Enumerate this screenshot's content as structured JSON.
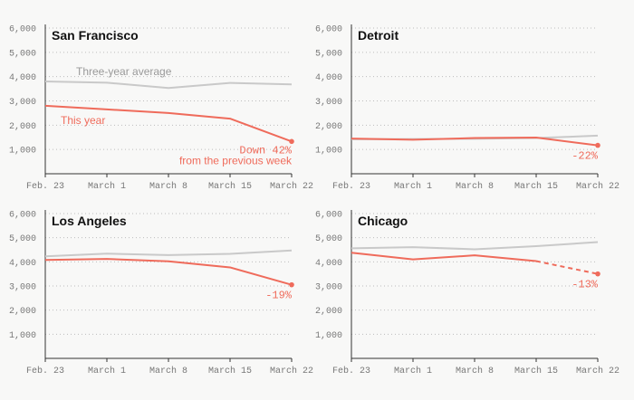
{
  "colors": {
    "this_year": "#ef6b5b",
    "average": "#c9c9c9",
    "axis": "#333333",
    "grid": "#bdbdbd",
    "tick_text": "#777777",
    "avg_label": "#999999"
  },
  "chart_data": [
    {
      "type": "line",
      "title": "San Francisco",
      "categories": [
        "Feb. 23",
        "March 1",
        "March 8",
        "March 15",
        "March 22"
      ],
      "ylim": [
        0,
        6000
      ],
      "yticks": [
        "1,000",
        "2,000",
        "3,000",
        "4,000",
        "5,000",
        "6,000"
      ],
      "grid": true,
      "series": [
        {
          "name": "Three-year average",
          "role": "average",
          "values": [
            3800,
            3750,
            3530,
            3740,
            3680
          ]
        },
        {
          "name": "This year",
          "role": "this_year",
          "values": [
            2800,
            2650,
            2500,
            2270,
            1330
          ]
        }
      ],
      "annotations": {
        "change_line1": "Down 42%",
        "change_line2": "from the previous week",
        "avg_label": "Three-year average",
        "this_year_label": "This year"
      }
    },
    {
      "type": "line",
      "title": "Detroit",
      "categories": [
        "Feb. 23",
        "March 1",
        "March 8",
        "March 15",
        "March 22"
      ],
      "ylim": [
        0,
        6000
      ],
      "yticks": [
        "1,000",
        "2,000",
        "3,000",
        "4,000",
        "5,000",
        "6,000"
      ],
      "grid": true,
      "series": [
        {
          "role": "average",
          "values": [
            1420,
            1430,
            1440,
            1470,
            1570
          ]
        },
        {
          "role": "this_year",
          "values": [
            1450,
            1400,
            1470,
            1490,
            1170
          ]
        }
      ],
      "annotations": {
        "change_line1": "-22%"
      }
    },
    {
      "type": "line",
      "title": "Los Angeles",
      "categories": [
        "Feb. 23",
        "March 1",
        "March 8",
        "March 15",
        "March 22"
      ],
      "ylim": [
        0,
        6000
      ],
      "yticks": [
        "1,000",
        "2,000",
        "3,000",
        "4,000",
        "5,000",
        "6,000"
      ],
      "grid": true,
      "series": [
        {
          "role": "average",
          "values": [
            4230,
            4340,
            4280,
            4330,
            4470
          ]
        },
        {
          "role": "this_year",
          "values": [
            4080,
            4120,
            4020,
            3770,
            3050
          ]
        }
      ],
      "annotations": {
        "change_line1": "-19%"
      }
    },
    {
      "type": "line",
      "title": "Chicago",
      "categories": [
        "Feb. 23",
        "March 1",
        "March 8",
        "March 15",
        "March 22"
      ],
      "ylim": [
        0,
        6000
      ],
      "yticks": [
        "1,000",
        "2,000",
        "3,000",
        "4,000",
        "5,000",
        "6,000"
      ],
      "grid": true,
      "series": [
        {
          "role": "average",
          "values": [
            4560,
            4610,
            4520,
            4650,
            4820
          ]
        },
        {
          "role": "this_year",
          "values": [
            4380,
            4100,
            4270,
            4030,
            3500
          ],
          "dashed_last_segment": true
        }
      ],
      "annotations": {
        "change_line1": "-13%"
      }
    }
  ]
}
